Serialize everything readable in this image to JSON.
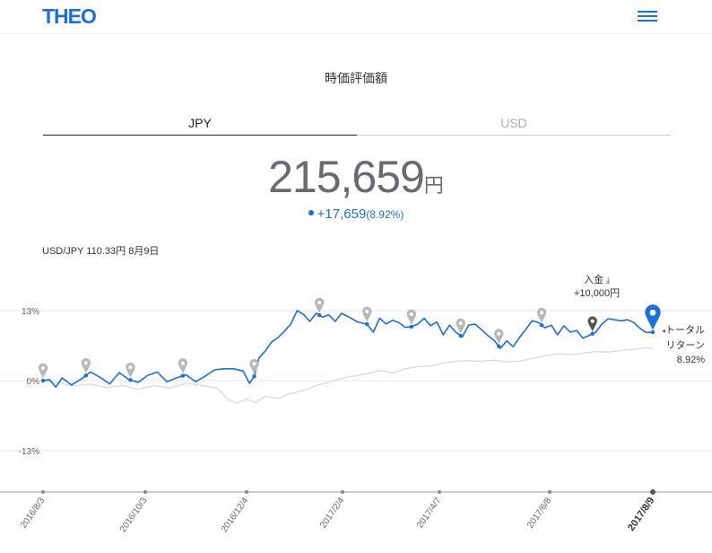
{
  "header": {
    "logo": "THEO",
    "menu_icon": "hamburger-menu-icon"
  },
  "title": "時価評価額",
  "tabs": [
    {
      "label": "JPY",
      "active": true
    },
    {
      "label": "USD",
      "active": false
    }
  ],
  "valuation": {
    "amount": "215,659",
    "unit": "円",
    "change": "+17,659",
    "change_pct": "(8.92%)"
  },
  "fx_rate": "USD/JPY 110.33円 8月9日",
  "deposit_marker": {
    "label": "入金",
    "amount": "+10,000円"
  },
  "return_label": {
    "line1": "トータル",
    "line2": "リターン",
    "value": "8.92%"
  },
  "colors": {
    "accent": "#1a6fe0",
    "benchmark": "#d8d8de",
    "marker_grey": "#b8b8b8",
    "deposit_marker": "#555555"
  },
  "chart_data": {
    "type": "line",
    "yticks": [
      "13%",
      "0%",
      "-13%"
    ],
    "ylim": [
      -22,
      21
    ],
    "xticks": [
      "2016/8/3",
      "2016/10/3",
      "2016/12/4",
      "2017/2/4",
      "2017/4/7",
      "2017/6/8",
      "2017/8/9"
    ],
    "series": [
      {
        "role": "portfolio",
        "points": [
          [
            0,
            0
          ],
          [
            4,
            0.2
          ],
          [
            8,
            -1.2
          ],
          [
            12,
            0.5
          ],
          [
            18,
            -0.8
          ],
          [
            24,
            0.3
          ],
          [
            30,
            1.6
          ],
          [
            36,
            0.6
          ],
          [
            42,
            -0.6
          ],
          [
            48,
            1.5
          ],
          [
            54,
            0.2
          ],
          [
            60,
            -0.3
          ],
          [
            66,
            1.0
          ],
          [
            72,
            1.6
          ],
          [
            78,
            -0.2
          ],
          [
            84,
            0.5
          ],
          [
            90,
            1.1
          ],
          [
            96,
            -0.2
          ],
          [
            102,
            0.8
          ],
          [
            108,
            2.0
          ],
          [
            114,
            2.2
          ],
          [
            120,
            2.2
          ],
          [
            126,
            1.8
          ],
          [
            130,
            -0.5
          ],
          [
            133,
            0.8
          ],
          [
            136,
            4.2
          ],
          [
            140,
            5.5
          ],
          [
            144,
            7.2
          ],
          [
            148,
            8.0
          ],
          [
            152,
            9.2
          ],
          [
            156,
            10.5
          ],
          [
            160,
            13.0
          ],
          [
            164,
            12.3
          ],
          [
            168,
            11.0
          ],
          [
            172,
            12.5
          ],
          [
            176,
            11.8
          ],
          [
            180,
            12.2
          ],
          [
            184,
            11.0
          ],
          [
            188,
            12.5
          ],
          [
            192,
            11.9
          ],
          [
            198,
            10.9
          ],
          [
            204,
            10.5
          ],
          [
            208,
            9.0
          ],
          [
            212,
            11.6
          ],
          [
            216,
            10.5
          ],
          [
            220,
            11.2
          ],
          [
            224,
            10.8
          ],
          [
            228,
            9.9
          ],
          [
            232,
            10.0
          ],
          [
            236,
            10.5
          ],
          [
            240,
            11.6
          ],
          [
            244,
            10.2
          ],
          [
            248,
            10.9
          ],
          [
            252,
            8.5
          ],
          [
            256,
            10.3
          ],
          [
            260,
            9.0
          ],
          [
            264,
            8.1
          ],
          [
            268,
            10.3
          ],
          [
            272,
            10.5
          ],
          [
            276,
            9.5
          ],
          [
            280,
            8.4
          ],
          [
            284,
            7.5
          ],
          [
            288,
            6.0
          ],
          [
            292,
            7.4
          ],
          [
            296,
            6.3
          ],
          [
            300,
            8.0
          ],
          [
            304,
            9.5
          ],
          [
            308,
            11.1
          ],
          [
            312,
            10.8
          ],
          [
            316,
            9.8
          ],
          [
            320,
            10.3
          ],
          [
            324,
            8.5
          ],
          [
            328,
            10.2
          ],
          [
            332,
            9.0
          ],
          [
            336,
            9.3
          ],
          [
            340,
            7.9
          ],
          [
            344,
            8.4
          ],
          [
            348,
            9.0
          ],
          [
            352,
            10.5
          ],
          [
            356,
            11.5
          ],
          [
            360,
            11.3
          ],
          [
            364,
            11.1
          ],
          [
            368,
            11.3
          ],
          [
            372,
            10.8
          ],
          [
            376,
            9.7
          ],
          [
            380,
            8.9
          ],
          [
            384,
            9.0
          ]
        ]
      },
      {
        "role": "benchmark",
        "points": [
          [
            0,
            0
          ],
          [
            10,
            -0.4
          ],
          [
            20,
            -1.0
          ],
          [
            30,
            -0.6
          ],
          [
            40,
            -1.3
          ],
          [
            50,
            -0.9
          ],
          [
            60,
            -1.6
          ],
          [
            70,
            -0.9
          ],
          [
            80,
            -1.4
          ],
          [
            90,
            -0.5
          ],
          [
            100,
            -0.9
          ],
          [
            110,
            -1.4
          ],
          [
            116,
            -3.4
          ],
          [
            122,
            -4.2
          ],
          [
            128,
            -3.4
          ],
          [
            134,
            -4.1
          ],
          [
            140,
            -2.9
          ],
          [
            148,
            -3.3
          ],
          [
            156,
            -2.4
          ],
          [
            164,
            -1.8
          ],
          [
            172,
            -0.9
          ],
          [
            180,
            -0.3
          ],
          [
            188,
            0.4
          ],
          [
            196,
            0.9
          ],
          [
            204,
            1.3
          ],
          [
            212,
            1.9
          ],
          [
            220,
            1.4
          ],
          [
            228,
            2.2
          ],
          [
            236,
            2.6
          ],
          [
            244,
            2.7
          ],
          [
            252,
            3.3
          ],
          [
            260,
            3.6
          ],
          [
            268,
            3.7
          ],
          [
            276,
            3.6
          ],
          [
            284,
            3.8
          ],
          [
            292,
            3.5
          ],
          [
            300,
            3.6
          ],
          [
            308,
            4.1
          ],
          [
            316,
            4.6
          ],
          [
            324,
            5.0
          ],
          [
            332,
            4.8
          ],
          [
            340,
            5.1
          ],
          [
            348,
            5.4
          ],
          [
            356,
            5.3
          ],
          [
            364,
            5.6
          ],
          [
            372,
            5.8
          ],
          [
            380,
            6.1
          ],
          [
            384,
            5.9
          ]
        ]
      }
    ],
    "markers_grey": [
      0,
      27,
      55,
      88,
      133,
      174,
      204,
      232,
      263,
      287,
      314
    ],
    "marker_deposit": 346,
    "marker_current": 384
  }
}
